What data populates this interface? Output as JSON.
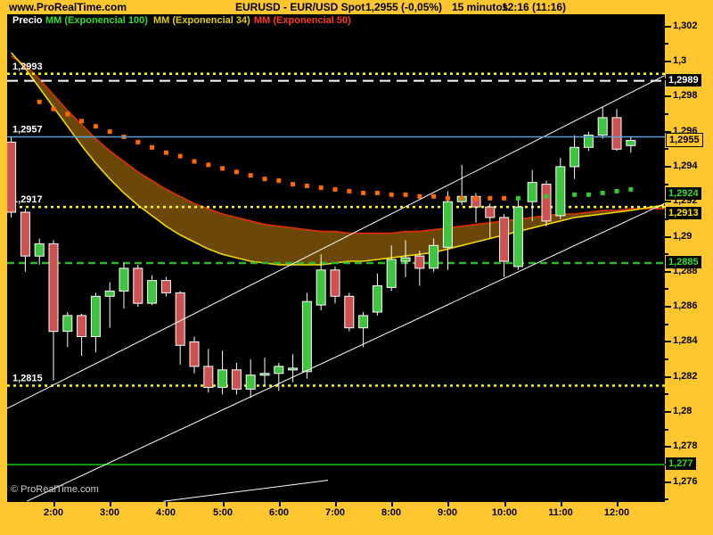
{
  "header": {
    "site": "www.ProRealTime.com",
    "title": "EURUSD - EUR/USD Spot",
    "price": "1,2955 (-0,05%)",
    "timeframe": "15 minutos",
    "clock": "12:16 (11:16)"
  },
  "legend": {
    "price_label": "Precio",
    "items": [
      {
        "label": "MM (Exponencial 100)",
        "color": "#33DD33"
      },
      {
        "label": "MM (Exponencial 34)",
        "color": "#E0CC00"
      },
      {
        "label": "MM (Exponencial 50)",
        "color": "#FF3B1F"
      }
    ]
  },
  "watermark": "© ProRealTime.com",
  "colors": {
    "frame_yellow": "#FEC62F",
    "plot_black": "#000000",
    "candle_up": "#3FC43F",
    "candle_down": "#CC5252",
    "wick": "#FFFFFF",
    "ema34": "#F0D800",
    "ema50": "#E03000",
    "ema100_orange": "#FF6A00",
    "ema100_green": "#2ECC2E",
    "band_brown": "#6B4708",
    "price_line_blue": "#5AA2E0",
    "level_yellow": "#FFFF00",
    "level_white": "#FFFFFF",
    "level_green_dashed": "#2EB52E",
    "level_green_solid": "#009900",
    "trendline_white": "#FFFFFF"
  },
  "chart_data": {
    "type": "candlestick",
    "instrument": "EURUSD - EUR/USD Spot",
    "timeframe_minutes": 15,
    "last_price": 1.2955,
    "x_axis": {
      "hour_labels": [
        "2:00",
        "3:00",
        "4:00",
        "5:00",
        "6:00",
        "7:00",
        "8:00",
        "9:00",
        "10:00",
        "11:00",
        "12:00"
      ]
    },
    "y_axis": {
      "labels": [
        {
          "text": "1,302",
          "price": 1.302
        },
        {
          "text": "1,3",
          "price": 1.3
        },
        {
          "text": "1,298",
          "price": 1.298
        },
        {
          "text": "1,296",
          "price": 1.296
        },
        {
          "text": "1,294",
          "price": 1.294
        },
        {
          "text": "1,292",
          "price": 1.292
        },
        {
          "text": "1,29",
          "price": 1.29
        },
        {
          "text": "1,288",
          "price": 1.288
        },
        {
          "text": "1,286",
          "price": 1.286
        },
        {
          "text": "1,284",
          "price": 1.284
        },
        {
          "text": "1,282",
          "price": 1.282
        },
        {
          "text": "1,28",
          "price": 1.28
        },
        {
          "text": "1,278",
          "price": 1.278
        },
        {
          "text": "1,276",
          "price": 1.276
        }
      ],
      "minor_ticks": [
        1.301,
        1.299,
        1.297,
        1.295,
        1.293,
        1.291,
        1.289,
        1.287,
        1.285,
        1.283,
        1.281,
        1.279,
        1.277,
        1.275
      ],
      "boxes": [
        {
          "text": "1,2989",
          "price": 1.2989,
          "fg": "#FFFFFF",
          "bg": "#000000",
          "border": null
        },
        {
          "text": "1,2955",
          "price": 1.2955,
          "fg": "#000000",
          "bg": "#FEC62F",
          "border": "#000000"
        },
        {
          "text": "1,2924",
          "price": 1.2924,
          "fg": "#33DD33",
          "bg": "#000000",
          "border": null
        },
        {
          "text": "1,2913",
          "price": 1.2913,
          "fg": "#FFE800",
          "bg": "#000000",
          "border": null
        },
        {
          "text": "1,2885",
          "price": 1.2885,
          "fg": "#33DD33",
          "bg": "#000000",
          "border": null
        },
        {
          "text": "1,277",
          "price": 1.277,
          "fg": "#33DD33",
          "bg": "#000000",
          "border": null
        }
      ]
    },
    "price_line": {
      "price": 1.2957,
      "label": "1,2957",
      "color": "#5AA2E0"
    },
    "levels": [
      {
        "price": 1.2993,
        "color": "#FFFF00",
        "dash": "3 4",
        "width": 2.5,
        "label": "1,2993"
      },
      {
        "price": 1.2989,
        "color": "#FFFFFF",
        "dash": "12 7",
        "width": 2,
        "label": null
      },
      {
        "price": 1.2917,
        "color": "#FFFF00",
        "dash": "3 4",
        "width": 2.5,
        "label": "1,2917"
      },
      {
        "price": 1.2885,
        "color": "#2EB52E",
        "dash": "8 5",
        "width": 2.5,
        "label": null
      },
      {
        "price": 1.2815,
        "color": "#FFFF00",
        "dash": "3 4",
        "width": 2.5,
        "label": "1,2815"
      },
      {
        "price": 1.277,
        "color": "#009900",
        "dash": null,
        "width": 2,
        "label": null
      }
    ],
    "candles": [
      {
        "t": "1:15",
        "o": 1.2954,
        "h": 1.2957,
        "l": 1.2911,
        "c": 1.2914
      },
      {
        "t": "1:30",
        "o": 1.2914,
        "h": 1.2916,
        "l": 1.288,
        "c": 1.2889
      },
      {
        "t": "1:45",
        "o": 1.2889,
        "h": 1.2899,
        "l": 1.2884,
        "c": 1.2896
      },
      {
        "t": "2:00",
        "o": 1.2896,
        "h": 1.2898,
        "l": 1.2818,
        "c": 1.2846
      },
      {
        "t": "2:15",
        "o": 1.2846,
        "h": 1.2857,
        "l": 1.2837,
        "c": 1.2855
      },
      {
        "t": "2:30",
        "o": 1.2855,
        "h": 1.2856,
        "l": 1.2832,
        "c": 1.2843
      },
      {
        "t": "2:45",
        "o": 1.2843,
        "h": 1.2868,
        "l": 1.2834,
        "c": 1.2866
      },
      {
        "t": "3:00",
        "o": 1.2866,
        "h": 1.2874,
        "l": 1.2848,
        "c": 1.2869
      },
      {
        "t": "3:15",
        "o": 1.2869,
        "h": 1.2885,
        "l": 1.2859,
        "c": 1.2882
      },
      {
        "t": "3:30",
        "o": 1.2882,
        "h": 1.2884,
        "l": 1.286,
        "c": 1.2862
      },
      {
        "t": "3:45",
        "o": 1.2862,
        "h": 1.2878,
        "l": 1.2861,
        "c": 1.2875
      },
      {
        "t": "4:00",
        "o": 1.2875,
        "h": 1.2877,
        "l": 1.2866,
        "c": 1.2868
      },
      {
        "t": "4:15",
        "o": 1.2868,
        "h": 1.2869,
        "l": 1.2827,
        "c": 1.2838
      },
      {
        "t": "4:30",
        "o": 1.284,
        "h": 1.2843,
        "l": 1.2822,
        "c": 1.2826
      },
      {
        "t": "4:45",
        "o": 1.2826,
        "h": 1.2836,
        "l": 1.2811,
        "c": 1.2814
      },
      {
        "t": "5:00",
        "o": 1.2814,
        "h": 1.2835,
        "l": 1.281,
        "c": 1.2824
      },
      {
        "t": "5:15",
        "o": 1.2824,
        "h": 1.2828,
        "l": 1.281,
        "c": 1.2813
      },
      {
        "t": "5:30",
        "o": 1.2813,
        "h": 1.283,
        "l": 1.2808,
        "c": 1.2821
      },
      {
        "t": "5:45",
        "o": 1.2822,
        "h": 1.2831,
        "l": 1.2815,
        "c": 1.2822
      },
      {
        "t": "6:00",
        "o": 1.2822,
        "h": 1.2828,
        "l": 1.2812,
        "c": 1.2826
      },
      {
        "t": "6:15",
        "o": 1.2825,
        "h": 1.2833,
        "l": 1.2817,
        "c": 1.2825
      },
      {
        "t": "6:30",
        "o": 1.2823,
        "h": 1.2868,
        "l": 1.2819,
        "c": 1.2863
      },
      {
        "t": "6:45",
        "o": 1.2861,
        "h": 1.289,
        "l": 1.2858,
        "c": 1.2881
      },
      {
        "t": "7:00",
        "o": 1.2881,
        "h": 1.2883,
        "l": 1.2862,
        "c": 1.2866
      },
      {
        "t": "7:15",
        "o": 1.2866,
        "h": 1.2868,
        "l": 1.2846,
        "c": 1.2848
      },
      {
        "t": "7:30",
        "o": 1.2848,
        "h": 1.2857,
        "l": 1.2837,
        "c": 1.2855
      },
      {
        "t": "7:45",
        "o": 1.2857,
        "h": 1.2879,
        "l": 1.2855,
        "c": 1.2872
      },
      {
        "t": "8:00",
        "o": 1.2871,
        "h": 1.2895,
        "l": 1.2869,
        "c": 1.2887
      },
      {
        "t": "8:15",
        "o": 1.2886,
        "h": 1.2898,
        "l": 1.2877,
        "c": 1.2888
      },
      {
        "t": "8:30",
        "o": 1.2889,
        "h": 1.2892,
        "l": 1.2872,
        "c": 1.2882
      },
      {
        "t": "8:45",
        "o": 1.2882,
        "h": 1.2899,
        "l": 1.288,
        "c": 1.2895
      },
      {
        "t": "9:00",
        "o": 1.2894,
        "h": 1.2926,
        "l": 1.2881,
        "c": 1.292
      },
      {
        "t": "9:15",
        "o": 1.292,
        "h": 1.2941,
        "l": 1.2918,
        "c": 1.2923
      },
      {
        "t": "9:30",
        "o": 1.2923,
        "h": 1.2925,
        "l": 1.2908,
        "c": 1.2917
      },
      {
        "t": "9:45",
        "o": 1.2917,
        "h": 1.2919,
        "l": 1.2899,
        "c": 1.2911
      },
      {
        "t": "10:00",
        "o": 1.2911,
        "h": 1.2913,
        "l": 1.2877,
        "c": 1.2886
      },
      {
        "t": "10:15",
        "o": 1.2883,
        "h": 1.2921,
        "l": 1.2881,
        "c": 1.2917
      },
      {
        "t": "10:30",
        "o": 1.292,
        "h": 1.2938,
        "l": 1.2909,
        "c": 1.2931
      },
      {
        "t": "10:45",
        "o": 1.293,
        "h": 1.2932,
        "l": 1.2906,
        "c": 1.2909
      },
      {
        "t": "11:00",
        "o": 1.2912,
        "h": 1.2945,
        "l": 1.291,
        "c": 1.294
      },
      {
        "t": "11:15",
        "o": 1.294,
        "h": 1.2958,
        "l": 1.2933,
        "c": 1.2951
      },
      {
        "t": "11:30",
        "o": 1.2951,
        "h": 1.296,
        "l": 1.2949,
        "c": 1.2958
      },
      {
        "t": "11:45",
        "o": 1.2958,
        "h": 1.2974,
        "l": 1.2956,
        "c": 1.2968
      },
      {
        "t": "12:00",
        "o": 1.2968,
        "h": 1.2973,
        "l": 1.2949,
        "c": 1.295
      },
      {
        "t": "12:15",
        "o": 1.2952,
        "h": 1.2957,
        "l": 1.2948,
        "c": 1.2955
      }
    ],
    "ema34_per_candle_plus_right_edge": [
      1.3005,
      1.2996,
      1.2985,
      1.2974,
      1.2963,
      1.2952,
      1.2942,
      1.2933,
      1.2925,
      1.2918,
      1.2912,
      1.2906,
      1.2901,
      1.2897,
      1.2893,
      1.289,
      1.2888,
      1.2886,
      1.2885,
      1.2884,
      1.2884,
      1.2884,
      1.2884,
      1.2885,
      1.2886,
      1.2886,
      1.2887,
      1.2888,
      1.2889,
      1.289,
      1.2891,
      1.2893,
      1.2895,
      1.2897,
      1.2899,
      1.2901,
      1.2903,
      1.2905,
      1.2907,
      1.2909,
      1.2911,
      1.2912,
      1.2913,
      1.2914,
      1.2915,
      1.2918
    ],
    "ema50_per_candle_plus_right_edge": [
      1.3003,
      1.2998,
      1.299,
      1.2981,
      1.2972,
      1.2964,
      1.2956,
      1.2949,
      1.2943,
      1.2937,
      1.2932,
      1.2927,
      1.2923,
      1.2919,
      1.2916,
      1.2913,
      1.2911,
      1.2909,
      1.2907,
      1.2906,
      1.2905,
      1.2904,
      1.2903,
      1.2903,
      1.2902,
      1.2902,
      1.2902,
      1.2902,
      1.2903,
      1.2903,
      1.2904,
      1.2905,
      1.2906,
      1.2907,
      1.2908,
      1.2909,
      1.291,
      1.2911,
      1.2912,
      1.2913,
      1.2913,
      1.2914,
      1.2915,
      1.2915,
      1.2916,
      1.2916
    ],
    "ema100": {
      "start_index": 2,
      "green_from_index": 36,
      "values": [
        1.2977,
        1.2973,
        1.297,
        1.2966,
        1.2963,
        1.296,
        1.2957,
        1.2954,
        1.2951,
        1.2948,
        1.2946,
        1.2943,
        1.2941,
        1.2939,
        1.2937,
        1.2935,
        1.2933,
        1.2932,
        1.293,
        1.2929,
        1.2928,
        1.2927,
        1.2926,
        1.2925,
        1.2925,
        1.2924,
        1.2924,
        1.2923,
        1.2923,
        1.2922,
        1.2922,
        1.2922,
        1.2922,
        1.2922,
        1.2922,
        1.2922,
        1.2923,
        1.2923,
        1.2924,
        1.2924,
        1.2925,
        1.2926,
        1.2927
      ]
    },
    "trendlines": [
      {
        "from": {
          "i": -0.3,
          "p": 1.2802
        },
        "to": {
          "i": 46.4,
          "p": 1.2992
        }
      },
      {
        "from": {
          "i": 1.1,
          "p": 1.2749
        },
        "to": {
          "i": 46.4,
          "p": 1.2919
        }
      },
      {
        "from": {
          "i": 10.8,
          "p": 1.2749
        },
        "to": {
          "i": 22.5,
          "p": 1.2761
        }
      }
    ]
  }
}
